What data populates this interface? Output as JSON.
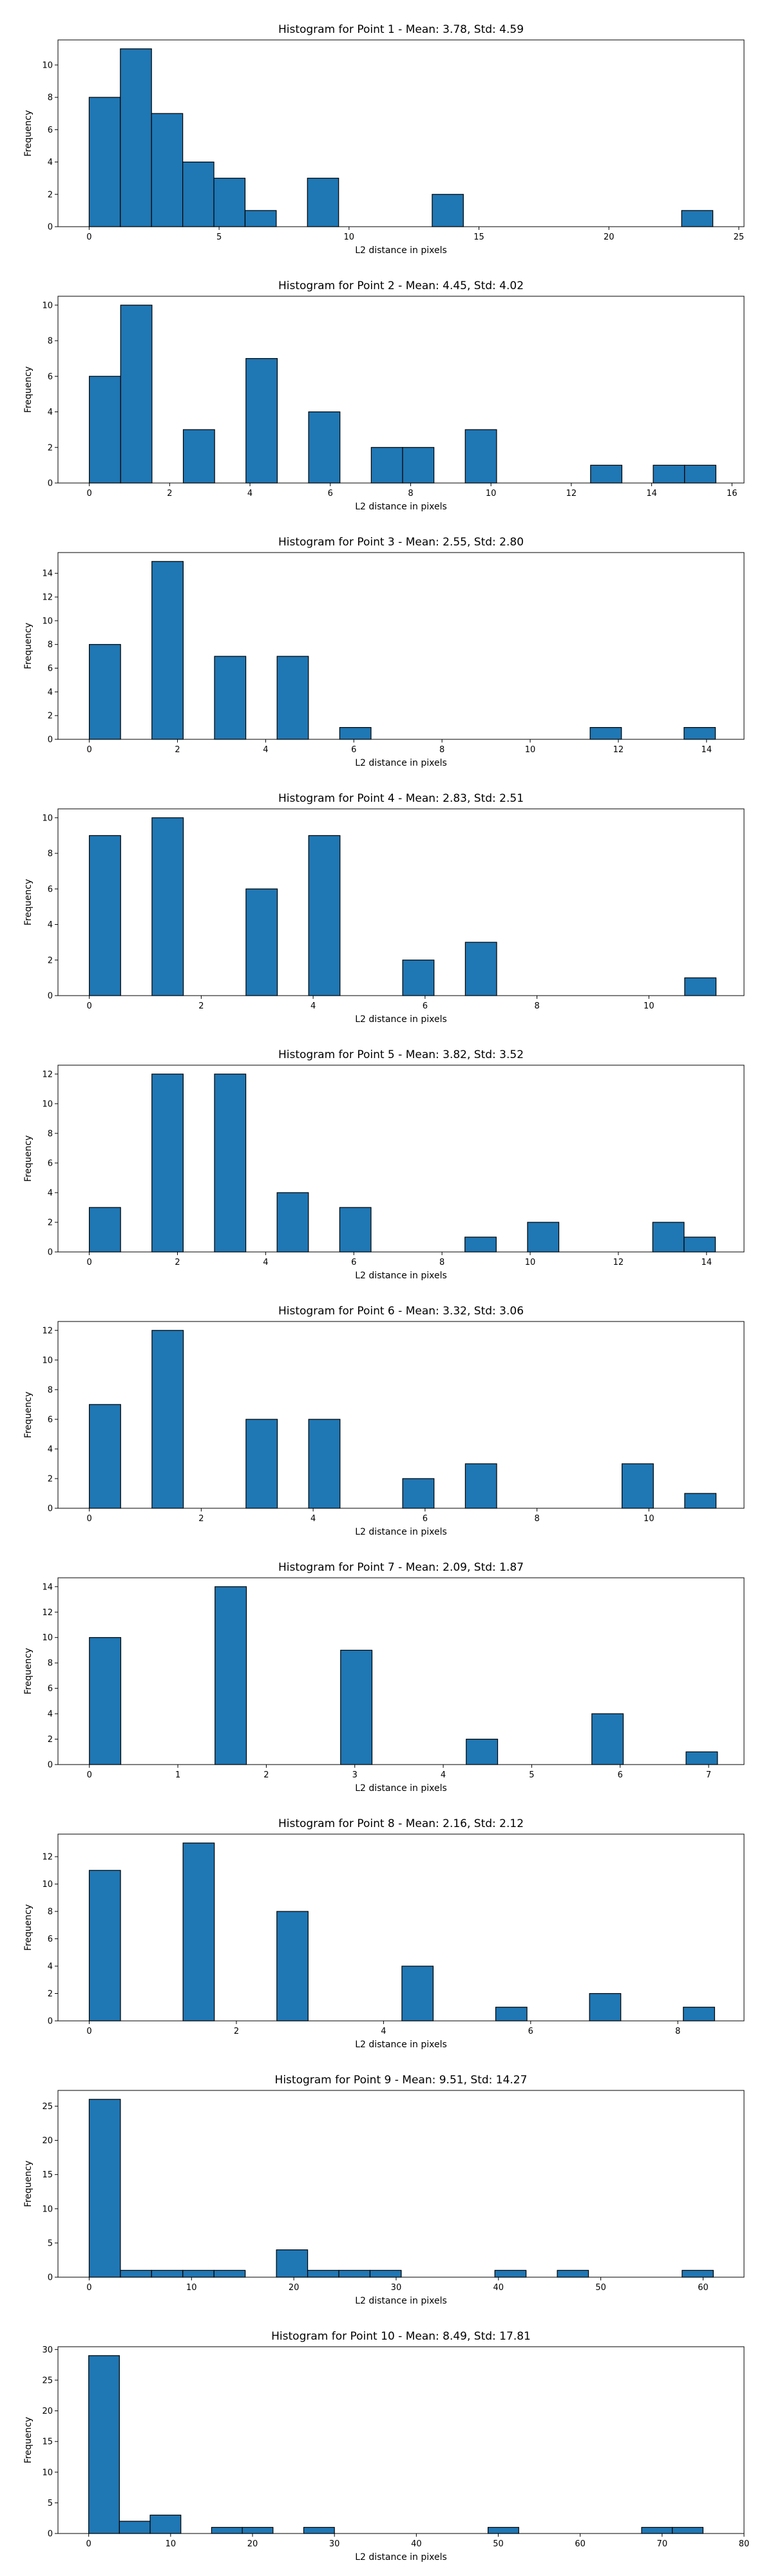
{
  "figure": {
    "bar_color": "#1f77b4",
    "edge_color": "#000000",
    "axis_color": "#000000"
  },
  "chart_data": [
    {
      "type": "bar",
      "title": "Histogram for Point 1 - Mean: 3.78, Std: 4.59",
      "xlabel": "L2 distance in pixels",
      "ylabel": "Frequency",
      "xlim": [
        -1.2,
        25.2
      ],
      "ylim": [
        0,
        11.55
      ],
      "xticks": [
        0,
        5,
        10,
        15,
        20,
        25
      ],
      "yticks": [
        0,
        2,
        4,
        6,
        8,
        10
      ],
      "bin_edges": [
        0,
        1.2,
        2.4,
        3.6,
        4.8,
        6.0,
        7.2,
        8.4,
        9.6,
        10.8,
        12.0,
        13.2,
        14.4,
        15.6,
        16.8,
        18.0,
        19.2,
        20.4,
        21.6,
        22.8,
        24.0
      ],
      "values": [
        8,
        11,
        7,
        4,
        3,
        1,
        0,
        3,
        0,
        0,
        0,
        2,
        0,
        0,
        0,
        0,
        0,
        0,
        0,
        1
      ]
    },
    {
      "type": "bar",
      "title": "Histogram for Point 2 - Mean: 4.45, Std: 4.02",
      "xlabel": "L2 distance in pixels",
      "ylabel": "Frequency",
      "xlim": [
        -0.78,
        16.3
      ],
      "ylim": [
        0,
        10.5
      ],
      "xticks": [
        0,
        2,
        4,
        6,
        8,
        10,
        12,
        14,
        16
      ],
      "yticks": [
        0,
        2,
        4,
        6,
        8,
        10
      ],
      "bin_edges": [
        0,
        0.78,
        1.56,
        2.34,
        3.12,
        3.9,
        4.68,
        5.46,
        6.24,
        7.02,
        7.8,
        8.58,
        9.36,
        10.14,
        10.92,
        11.7,
        12.48,
        13.26,
        14.04,
        14.82,
        15.6
      ],
      "values": [
        6,
        10,
        0,
        3,
        0,
        7,
        0,
        4,
        0,
        2,
        2,
        0,
        3,
        0,
        0,
        0,
        1,
        0,
        1,
        1
      ]
    },
    {
      "type": "bar",
      "title": "Histogram for Point 3 - Mean: 2.55, Std: 2.80",
      "xlabel": "L2 distance in pixels",
      "ylabel": "Frequency",
      "xlim": [
        -0.71,
        14.85
      ],
      "ylim": [
        0,
        15.75
      ],
      "xticks": [
        0,
        2,
        4,
        6,
        8,
        10,
        12,
        14
      ],
      "yticks": [
        0,
        2,
        4,
        6,
        8,
        10,
        12,
        14
      ],
      "bin_edges": [
        0,
        0.71,
        1.42,
        2.13,
        2.84,
        3.55,
        4.26,
        4.97,
        5.68,
        6.39,
        7.1,
        7.81,
        8.52,
        9.23,
        9.94,
        10.65,
        11.36,
        12.07,
        12.78,
        13.49,
        14.2
      ],
      "values": [
        8,
        0,
        15,
        0,
        7,
        0,
        7,
        0,
        1,
        0,
        0,
        0,
        0,
        0,
        0,
        0,
        1,
        0,
        0,
        1
      ]
    },
    {
      "type": "bar",
      "title": "Histogram for Point 4 - Mean: 2.83, Std: 2.51",
      "xlabel": "L2 distance in pixels",
      "ylabel": "Frequency",
      "xlim": [
        -0.56,
        11.7
      ],
      "ylim": [
        0,
        10.5
      ],
      "xticks": [
        0,
        2,
        4,
        6,
        8,
        10
      ],
      "yticks": [
        0,
        2,
        4,
        6,
        8,
        10
      ],
      "bin_edges": [
        0,
        0.56,
        1.12,
        1.68,
        2.24,
        2.8,
        3.36,
        3.92,
        4.48,
        5.04,
        5.6,
        6.16,
        6.72,
        7.28,
        7.84,
        8.4,
        8.96,
        9.52,
        10.08,
        10.64,
        11.2
      ],
      "values": [
        9,
        0,
        10,
        0,
        0,
        6,
        0,
        9,
        0,
        0,
        2,
        0,
        3,
        0,
        0,
        0,
        0,
        0,
        0,
        1
      ]
    },
    {
      "type": "bar",
      "title": "Histogram for Point 5 - Mean: 3.82, Std: 3.52",
      "xlabel": "L2 distance in pixels",
      "ylabel": "Frequency",
      "xlim": [
        -0.71,
        14.85
      ],
      "ylim": [
        0,
        12.6
      ],
      "xticks": [
        0,
        2,
        4,
        6,
        8,
        10,
        12,
        14
      ],
      "yticks": [
        0,
        2,
        4,
        6,
        8,
        10,
        12
      ],
      "bin_edges": [
        0,
        0.71,
        1.42,
        2.13,
        2.84,
        3.55,
        4.26,
        4.97,
        5.68,
        6.39,
        7.1,
        7.81,
        8.52,
        9.23,
        9.94,
        10.65,
        11.36,
        12.07,
        12.78,
        13.49,
        14.2
      ],
      "values": [
        3,
        0,
        12,
        0,
        12,
        0,
        4,
        0,
        3,
        0,
        0,
        0,
        1,
        0,
        2,
        0,
        0,
        0,
        2,
        1
      ]
    },
    {
      "type": "bar",
      "title": "Histogram for Point 6 - Mean: 3.32, Std: 3.06",
      "xlabel": "L2 distance in pixels",
      "ylabel": "Frequency",
      "xlim": [
        -0.56,
        11.7
      ],
      "ylim": [
        0,
        12.6
      ],
      "xticks": [
        0,
        2,
        4,
        6,
        8,
        10
      ],
      "yticks": [
        0,
        2,
        4,
        6,
        8,
        10,
        12
      ],
      "bin_edges": [
        0,
        0.56,
        1.12,
        1.68,
        2.24,
        2.8,
        3.36,
        3.92,
        4.48,
        5.04,
        5.6,
        6.16,
        6.72,
        7.28,
        7.84,
        8.4,
        8.96,
        9.52,
        10.08,
        10.64,
        11.2
      ],
      "values": [
        7,
        0,
        12,
        0,
        0,
        6,
        0,
        6,
        0,
        0,
        2,
        0,
        3,
        0,
        0,
        0,
        0,
        3,
        0,
        1
      ]
    },
    {
      "type": "bar",
      "title": "Histogram for Point 7 - Mean: 2.09, Std: 1.87",
      "xlabel": "L2 distance in pixels",
      "ylabel": "Frequency",
      "xlim": [
        -0.355,
        7.4
      ],
      "ylim": [
        0,
        14.7
      ],
      "xticks": [
        0,
        1,
        2,
        3,
        4,
        5,
        6,
        7
      ],
      "yticks": [
        0,
        2,
        4,
        6,
        8,
        10,
        12,
        14
      ],
      "bin_edges": [
        0,
        0.355,
        0.71,
        1.065,
        1.42,
        1.775,
        2.13,
        2.485,
        2.84,
        3.195,
        3.55,
        3.905,
        4.26,
        4.615,
        4.97,
        5.325,
        5.68,
        6.035,
        6.39,
        6.745,
        7.1
      ],
      "values": [
        10,
        0,
        0,
        0,
        14,
        0,
        0,
        0,
        9,
        0,
        0,
        0,
        2,
        0,
        0,
        0,
        4,
        0,
        0,
        1
      ]
    },
    {
      "type": "bar",
      "title": "Histogram for Point 8 - Mean: 2.16, Std: 2.12",
      "xlabel": "L2 distance in pixels",
      "ylabel": "Frequency",
      "xlim": [
        -0.425,
        8.9
      ],
      "ylim": [
        0,
        13.65
      ],
      "xticks": [
        0,
        2,
        4,
        6,
        8
      ],
      "yticks": [
        0,
        2,
        4,
        6,
        8,
        10,
        12
      ],
      "bin_edges": [
        0,
        0.425,
        0.85,
        1.275,
        1.7,
        2.125,
        2.55,
        2.975,
        3.4,
        3.825,
        4.25,
        4.675,
        5.1,
        5.525,
        5.95,
        6.375,
        6.8,
        7.225,
        7.65,
        8.075,
        8.5
      ],
      "values": [
        11,
        0,
        0,
        13,
        0,
        0,
        8,
        0,
        0,
        0,
        4,
        0,
        0,
        1,
        0,
        0,
        2,
        0,
        0,
        1
      ]
    },
    {
      "type": "bar",
      "title": "Histogram for Point 9 - Mean: 9.51, Std: 14.27",
      "xlabel": "L2 distance in pixels",
      "ylabel": "Frequency",
      "xlim": [
        -3.05,
        64.0
      ],
      "ylim": [
        0,
        27.3
      ],
      "xticks": [
        0,
        10,
        20,
        30,
        40,
        50,
        60
      ],
      "yticks": [
        0,
        5,
        10,
        15,
        20,
        25
      ],
      "bin_edges": [
        0,
        3.05,
        6.1,
        9.15,
        12.2,
        15.25,
        18.3,
        21.35,
        24.4,
        27.45,
        30.5,
        33.55,
        36.6,
        39.65,
        42.7,
        45.75,
        48.8,
        51.85,
        54.9,
        57.95,
        61.0
      ],
      "values": [
        26,
        1,
        1,
        1,
        1,
        0,
        4,
        1,
        1,
        1,
        0,
        0,
        0,
        1,
        0,
        1,
        0,
        0,
        0,
        1
      ]
    },
    {
      "type": "bar",
      "title": "Histogram for Point 10 - Mean: 8.49, Std: 17.81",
      "xlabel": "L2 distance in pixels",
      "ylabel": "Frequency",
      "xlim": [
        -3.75,
        80.0
      ],
      "ylim": [
        0,
        30.45
      ],
      "xticks": [
        0,
        10,
        20,
        30,
        40,
        50,
        60,
        70,
        80
      ],
      "yticks": [
        0,
        5,
        10,
        15,
        20,
        25,
        30
      ],
      "bin_edges": [
        0,
        3.75,
        7.5,
        11.25,
        15.0,
        18.75,
        22.5,
        26.25,
        30.0,
        33.75,
        37.5,
        41.25,
        45.0,
        48.75,
        52.5,
        56.25,
        60.0,
        63.75,
        67.5,
        71.25,
        75.0
      ],
      "values": [
        29,
        2,
        3,
        0,
        1,
        1,
        0,
        1,
        0,
        0,
        0,
        0,
        0,
        1,
        0,
        0,
        0,
        0,
        1,
        1
      ]
    }
  ]
}
